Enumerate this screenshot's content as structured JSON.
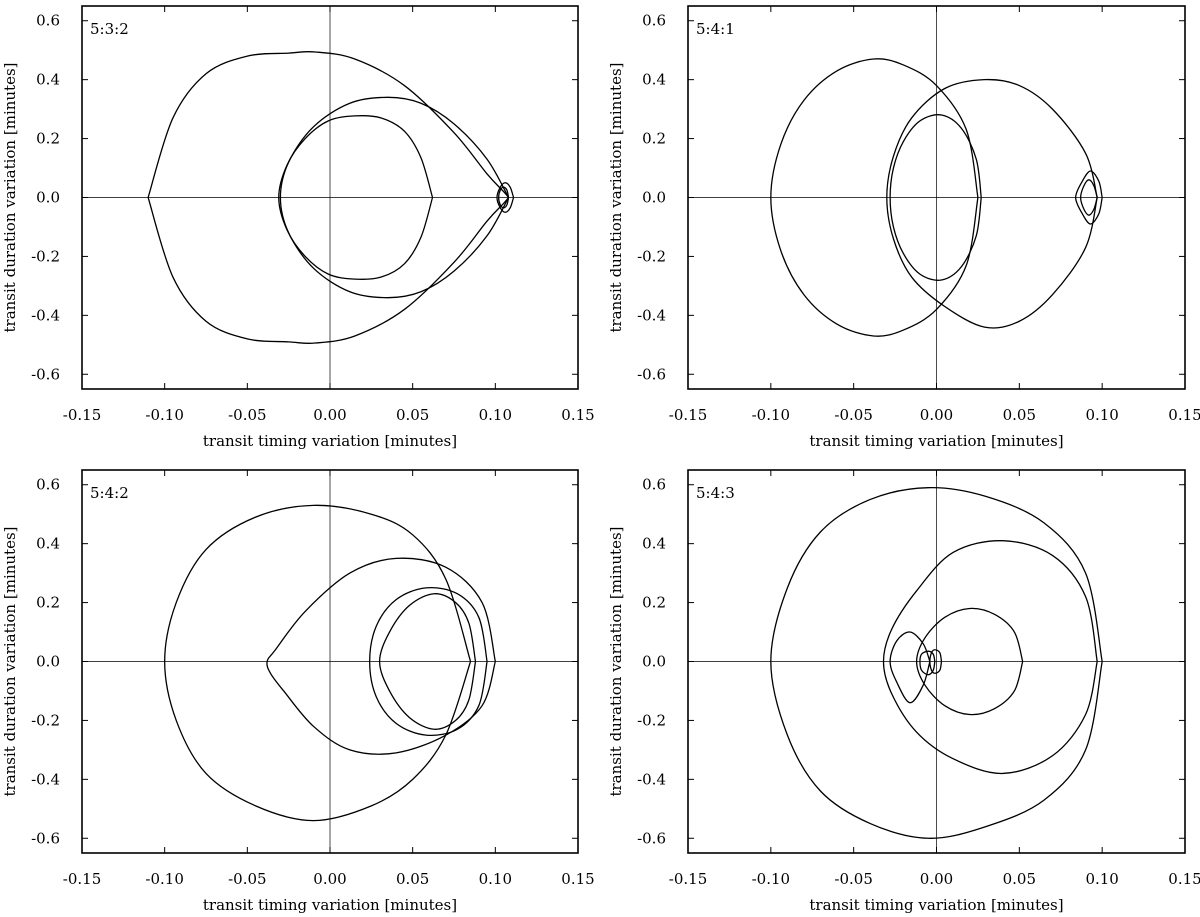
{
  "chart_data": [
    {
      "type": "line",
      "panel_label": "5:3:2",
      "xlabel": "transit timing variation [minutes]",
      "ylabel": "transit duration variation [minutes]",
      "xlim": [
        -0.15,
        0.15
      ],
      "ylim": [
        -0.65,
        0.65
      ],
      "xticks": [
        "-0.15",
        "-0.10",
        "-0.05",
        "0.00",
        "0.05",
        "0.10",
        "0.15"
      ],
      "yticks": [
        "0.6",
        "0.4",
        "0.2",
        "0.0",
        "-0.2",
        "-0.4",
        "-0.6"
      ],
      "series": [
        {
          "x": [
            -0.11,
            -0.095,
            -0.075,
            -0.05,
            -0.025,
            -0.009,
            0.015,
            0.045,
            0.075,
            0.095,
            0.105,
            0.108
          ],
          "y": [
            0.0,
            0.27,
            0.42,
            0.48,
            0.49,
            0.494,
            0.47,
            0.38,
            0.22,
            0.08,
            0.02,
            0.0
          ]
        },
        {
          "x": [
            -0.11,
            -0.095,
            -0.075,
            -0.05,
            -0.025,
            -0.009,
            0.015,
            0.045,
            0.075,
            0.095,
            0.105,
            0.108
          ],
          "y": [
            0.0,
            -0.27,
            -0.42,
            -0.48,
            -0.49,
            -0.494,
            -0.47,
            -0.38,
            -0.22,
            -0.08,
            -0.02,
            0.0
          ]
        },
        {
          "x": [
            0.108,
            0.095,
            0.075,
            0.055,
            0.035,
            0.012,
            -0.01,
            -0.025,
            -0.03,
            -0.025,
            -0.01,
            0.012,
            0.035,
            0.055,
            0.075,
            0.095,
            0.108
          ],
          "y": [
            0.0,
            0.13,
            0.25,
            0.32,
            0.34,
            0.32,
            0.24,
            0.12,
            0.0,
            -0.12,
            -0.24,
            -0.32,
            -0.34,
            -0.32,
            -0.25,
            -0.13,
            0.0
          ]
        },
        {
          "x": [
            0.062,
            0.055,
            0.045,
            0.031,
            0.015,
            -0.001,
            -0.015,
            -0.026,
            -0.031,
            -0.026,
            -0.015,
            -0.001,
            0.015,
            0.031,
            0.045,
            0.055,
            0.062
          ],
          "y": [
            0.0,
            0.135,
            0.225,
            0.27,
            0.277,
            0.26,
            0.2,
            0.11,
            0.0,
            -0.11,
            -0.2,
            -0.26,
            -0.277,
            -0.27,
            -0.225,
            -0.135,
            0.0
          ]
        },
        {
          "x": [
            0.111,
            0.109,
            0.106,
            0.103,
            0.101,
            0.103,
            0.106,
            0.109,
            0.111
          ],
          "y": [
            0.0,
            0.035,
            0.05,
            0.035,
            0.0,
            -0.035,
            -0.05,
            -0.035,
            0.0
          ]
        },
        {
          "x": [
            0.108,
            0.107,
            0.105,
            0.103,
            0.102,
            0.103,
            0.105,
            0.107,
            0.108
          ],
          "y": [
            0.0,
            0.025,
            0.035,
            0.025,
            0.0,
            -0.025,
            -0.035,
            -0.025,
            0.0
          ]
        }
      ]
    },
    {
      "type": "line",
      "panel_label": "5:4:1",
      "xlabel": "transit timing variation [minutes]",
      "ylabel": "transit duration variation [minutes]",
      "xlim": [
        -0.15,
        0.15
      ],
      "ylim": [
        -0.65,
        0.65
      ],
      "xticks": [
        "-0.15",
        "-0.10",
        "-0.05",
        "0.00",
        "0.05",
        "0.10",
        "0.15"
      ],
      "yticks": [
        "0.6",
        "0.4",
        "0.2",
        "0.0",
        "-0.2",
        "-0.4",
        "-0.6"
      ],
      "series": [
        {
          "x": [
            0.025,
            0.018,
            0.0,
            -0.02,
            -0.038,
            -0.06,
            -0.08,
            -0.094,
            -0.1,
            -0.094,
            -0.08,
            -0.06,
            -0.038,
            -0.02,
            0.0,
            0.018,
            0.025
          ],
          "y": [
            0.0,
            0.23,
            0.38,
            0.45,
            0.47,
            0.43,
            0.33,
            0.18,
            0.0,
            -0.18,
            -0.33,
            -0.43,
            -0.47,
            -0.45,
            -0.38,
            -0.23,
            0.0
          ]
        },
        {
          "x": [
            0.097,
            0.09,
            0.07,
            0.05,
            0.029,
            0.005,
            -0.015,
            -0.026,
            -0.03,
            -0.026,
            -0.015,
            0.005,
            0.029,
            0.05,
            0.07,
            0.09,
            0.097
          ],
          "y": [
            0.0,
            0.15,
            0.3,
            0.38,
            0.4,
            0.37,
            0.27,
            0.14,
            0.0,
            -0.14,
            -0.27,
            -0.37,
            -0.44,
            -0.42,
            -0.33,
            -0.17,
            0.0
          ]
        },
        {
          "x": [
            0.027,
            0.024,
            0.015,
            0.003,
            -0.01,
            -0.02,
            -0.026,
            -0.028,
            -0.026,
            -0.02,
            -0.01,
            0.003,
            0.015,
            0.024,
            0.027
          ],
          "y": [
            0.0,
            0.13,
            0.235,
            0.28,
            0.26,
            0.19,
            0.1,
            0.0,
            -0.1,
            -0.19,
            -0.26,
            -0.28,
            -0.235,
            -0.13,
            0.0
          ]
        },
        {
          "x": [
            0.1,
            0.098,
            0.093,
            0.088,
            0.084,
            0.088,
            0.093,
            0.098,
            0.1
          ],
          "y": [
            0.0,
            0.055,
            0.09,
            0.055,
            0.0,
            -0.055,
            -0.09,
            -0.055,
            0.0
          ]
        },
        {
          "x": [
            0.097,
            0.095,
            0.092,
            0.089,
            0.087,
            0.089,
            0.092,
            0.095,
            0.097
          ],
          "y": [
            0.0,
            0.04,
            0.06,
            0.04,
            0.0,
            -0.04,
            -0.06,
            -0.04,
            0.0
          ]
        }
      ]
    },
    {
      "type": "line",
      "panel_label": "5:4:2",
      "xlabel": "transit timing variation [minutes]",
      "ylabel": "transit duration variation [minutes]",
      "xlim": [
        -0.15,
        0.15
      ],
      "ylim": [
        -0.65,
        0.65
      ],
      "xticks": [
        "-0.15",
        "-0.10",
        "-0.05",
        "0.00",
        "0.05",
        "0.10",
        "0.15"
      ],
      "yticks": [
        "0.6",
        "0.4",
        "0.2",
        "0.0",
        "-0.2",
        "-0.4",
        "-0.6"
      ],
      "series": [
        {
          "x": [
            0.085,
            0.07,
            0.05,
            0.025,
            -0.01,
            -0.045,
            -0.075,
            -0.093,
            -0.1,
            -0.093,
            -0.075,
            -0.045,
            -0.01,
            0.025,
            0.05,
            0.07,
            0.085
          ],
          "y": [
            0.0,
            0.28,
            0.43,
            0.5,
            0.53,
            0.49,
            0.38,
            0.2,
            0.0,
            -0.2,
            -0.38,
            -0.49,
            -0.54,
            -0.49,
            -0.4,
            -0.25,
            0.0
          ]
        },
        {
          "x": [
            0.1,
            0.092,
            0.07,
            0.04,
            0.012,
            -0.015,
            -0.033,
            -0.038,
            -0.036,
            -0.028,
            -0.01,
            0.012,
            0.04,
            0.07,
            0.092,
            0.1
          ],
          "y": [
            0.0,
            0.2,
            0.32,
            0.35,
            0.3,
            0.17,
            0.04,
            0.0,
            -0.04,
            -0.1,
            -0.22,
            -0.3,
            -0.31,
            -0.25,
            -0.15,
            0.0
          ]
        },
        {
          "x": [
            0.095,
            0.09,
            0.077,
            0.058,
            0.04,
            0.028,
            0.024,
            0.028,
            0.04,
            0.058,
            0.077,
            0.09,
            0.095
          ],
          "y": [
            0.0,
            0.15,
            0.23,
            0.25,
            0.21,
            0.12,
            0.0,
            -0.12,
            -0.21,
            -0.25,
            -0.23,
            -0.15,
            0.0
          ]
        },
        {
          "x": [
            0.088,
            0.084,
            0.076,
            0.063,
            0.048,
            0.036,
            0.03,
            0.036,
            0.048,
            0.063,
            0.076,
            0.084,
            0.088
          ],
          "y": [
            0.0,
            0.13,
            0.2,
            0.23,
            0.19,
            0.1,
            0.0,
            -0.1,
            -0.19,
            -0.23,
            -0.2,
            -0.13,
            0.0
          ]
        }
      ]
    },
    {
      "type": "line",
      "panel_label": "5:4:3",
      "xlabel": "transit timing variation [minutes]",
      "ylabel": "transit duration variation [minutes]",
      "xlim": [
        -0.15,
        0.15
      ],
      "ylim": [
        -0.65,
        0.65
      ],
      "xticks": [
        "-0.15",
        "-0.10",
        "-0.05",
        "0.00",
        "0.05",
        "0.10",
        "0.15"
      ],
      "yticks": [
        "0.6",
        "0.4",
        "0.2",
        "0.0",
        "-0.2",
        "-0.4",
        "-0.6"
      ],
      "series": [
        {
          "x": [
            0.1,
            0.09,
            0.065,
            0.03,
            -0.005,
            -0.04,
            -0.07,
            -0.09,
            -0.1,
            -0.09,
            -0.07,
            -0.04,
            -0.005,
            0.03,
            0.065,
            0.09,
            0.1
          ],
          "y": [
            0.0,
            0.3,
            0.47,
            0.56,
            0.59,
            0.55,
            0.44,
            0.25,
            0.0,
            -0.25,
            -0.44,
            -0.55,
            -0.6,
            -0.56,
            -0.47,
            -0.3,
            0.0
          ]
        },
        {
          "x": [
            0.097,
            0.09,
            0.07,
            0.04,
            0.01,
            -0.012,
            -0.027,
            -0.032,
            -0.027,
            -0.012,
            0.01,
            0.04,
            0.07,
            0.09,
            0.097
          ],
          "y": [
            0.0,
            0.22,
            0.36,
            0.41,
            0.37,
            0.24,
            0.11,
            0.0,
            -0.11,
            -0.24,
            -0.33,
            -0.38,
            -0.32,
            -0.18,
            0.0
          ]
        },
        {
          "x": [
            0.052,
            0.047,
            0.035,
            0.02,
            0.005,
            -0.007,
            -0.012,
            -0.007,
            0.005,
            0.02,
            0.035,
            0.047,
            0.052
          ],
          "y": [
            0.0,
            0.1,
            0.16,
            0.18,
            0.15,
            0.08,
            0.0,
            -0.08,
            -0.15,
            -0.18,
            -0.16,
            -0.1,
            0.0
          ]
        },
        {
          "x": [
            -0.004,
            -0.008,
            -0.016,
            -0.024,
            -0.028,
            -0.024,
            -0.016,
            -0.008,
            -0.004
          ],
          "y": [
            0.0,
            0.06,
            0.1,
            0.07,
            0.0,
            -0.07,
            -0.14,
            -0.08,
            0.0
          ]
        },
        {
          "x": [
            -0.001,
            -0.002,
            -0.005,
            -0.009,
            -0.01,
            -0.009,
            -0.005,
            -0.002,
            -0.001
          ],
          "y": [
            0.0,
            0.025,
            0.035,
            0.025,
            0.0,
            -0.03,
            -0.045,
            -0.03,
            0.0
          ]
        },
        {
          "x": [
            0.003,
            0.002,
            -0.001,
            -0.003,
            -0.004,
            -0.003,
            -0.001,
            0.002,
            0.003
          ],
          "y": [
            0.0,
            0.03,
            0.04,
            0.03,
            0.0,
            -0.03,
            -0.04,
            -0.03,
            0.0
          ]
        }
      ]
    }
  ]
}
